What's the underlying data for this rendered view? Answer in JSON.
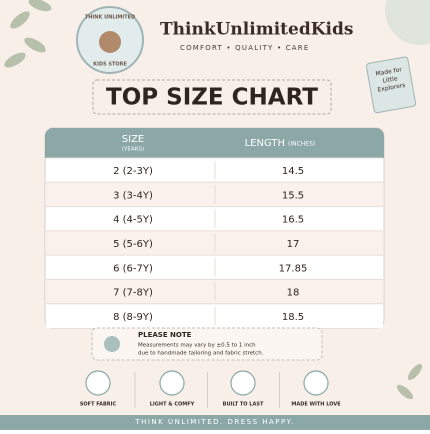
{
  "header": {
    "logo_lines": [
      "THINK UNLIMITED",
      "KIDS STORE"
    ],
    "brand": "ThinkUnlimitedKids",
    "tagline": "COMFORT • QUALITY • CARE"
  },
  "badge": [
    "Made for",
    "Little",
    "Explorers"
  ],
  "title": "TOP SIZE CHART",
  "table": {
    "columns": [
      {
        "label": "SIZE",
        "sublabel": "(YEARS)"
      },
      {
        "label": "LENGTH",
        "sublabel": "(INCHES)"
      }
    ],
    "rows": [
      [
        "2 (2-3Y)",
        "14.5"
      ],
      [
        "3 (3-4Y)",
        "15.5"
      ],
      [
        "4 (4-5Y)",
        "16.5"
      ],
      [
        "5 (5-6Y)",
        "17"
      ],
      [
        "6 (6-7Y)",
        "17.85"
      ],
      [
        "7 (7-8Y)",
        "18"
      ],
      [
        "8 (8-9Y)",
        "18.5"
      ]
    ]
  },
  "note": {
    "title": "PLEASE NOTE",
    "lines": [
      "Measurements may vary by ±0.5 to 1 inch",
      "due to handmade tailoring and fabric stretch."
    ]
  },
  "features": [
    "SOFT FABRIC",
    "LIGHT & COMFY",
    "BUILT TO LAST",
    "MADE WITH LOVE"
  ],
  "footer": "THINK UNLIMITED. DRESS HAPPY."
}
